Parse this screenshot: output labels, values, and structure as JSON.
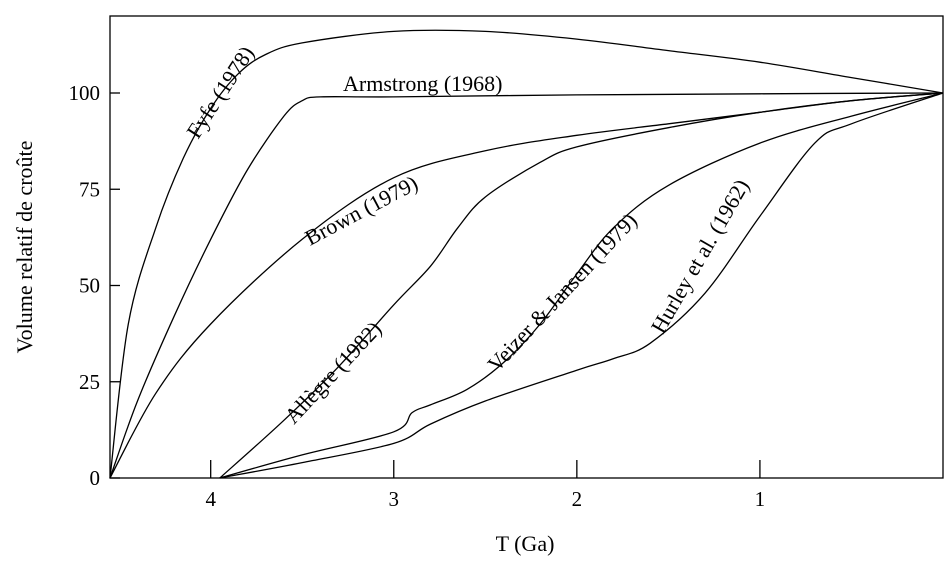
{
  "chart_data": {
    "type": "line",
    "title": "",
    "xlabel": "T (Ga)",
    "ylabel": "Volume relatif de croûte",
    "x_reversed": true,
    "xlim": [
      4.55,
      0
    ],
    "ylim": [
      0,
      120
    ],
    "x_ticks": [
      4,
      3,
      2,
      1
    ],
    "y_ticks": [
      0,
      25,
      50,
      75,
      100
    ],
    "grid": false,
    "legend": "none",
    "series": [
      {
        "name": "Fyfe (1978)",
        "x": [
          4.55,
          4.45,
          4.3,
          4.15,
          4.0,
          3.85,
          3.7,
          3.5,
          3.0,
          2.5,
          2.0,
          1.5,
          1.0,
          0.5,
          0.0
        ],
        "y": [
          0,
          40,
          65,
          83,
          96,
          105,
          110,
          113,
          116,
          116,
          114,
          111,
          108,
          104,
          100
        ]
      },
      {
        "name": "Armstrong (1968)",
        "x": [
          4.55,
          4.4,
          4.2,
          4.0,
          3.8,
          3.6,
          3.5,
          3.4,
          3.0,
          2.0,
          1.0,
          0.0
        ],
        "y": [
          0,
          20,
          42,
          62,
          80,
          94,
          98,
          99,
          99,
          99.5,
          99.8,
          100
        ]
      },
      {
        "name": "Brown (1979)",
        "x": [
          4.55,
          4.3,
          4.0,
          3.5,
          3.0,
          2.5,
          2.0,
          1.5,
          1.0,
          0.5,
          0.0
        ],
        "y": [
          0,
          22,
          40,
          62,
          78,
          85,
          89,
          92,
          95,
          98,
          100
        ]
      },
      {
        "name": "Allègre (1982)",
        "x": [
          3.95,
          3.6,
          3.3,
          3.0,
          2.8,
          2.65,
          2.5,
          2.2,
          2.0,
          1.5,
          1.0,
          0.5,
          0.0
        ],
        "y": [
          0,
          15,
          29,
          45,
          55,
          65,
          73,
          82,
          86,
          91,
          95,
          98,
          100
        ]
      },
      {
        "name": "Veizer & Jansen (1979)",
        "x": [
          3.95,
          3.5,
          3.0,
          2.9,
          2.8,
          2.6,
          2.4,
          2.2,
          2.0,
          1.8,
          1.5,
          1.0,
          0.5,
          0.0
        ],
        "y": [
          0,
          6,
          12,
          17,
          19,
          23,
          30,
          40,
          53,
          65,
          76,
          87,
          94,
          100
        ]
      },
      {
        "name": "Hurley et al. (1962)",
        "x": [
          3.95,
          3.5,
          3.0,
          2.8,
          2.5,
          2.0,
          1.8,
          1.6,
          1.3,
          1.0,
          0.7,
          0.5,
          0.0
        ],
        "y": [
          0,
          4,
          9,
          14,
          20,
          28,
          31,
          35,
          48,
          68,
          87,
          92,
          100
        ]
      }
    ]
  },
  "labels": {
    "fyfe": "Fyfe (1978)",
    "armstrong": "Armstrong (1968)",
    "brown": "Brown (1979)",
    "allegre": "Allègre (1982)",
    "veizer": "Veizer & Jansen (1979)",
    "hurley": "Hurley et al. (1962)"
  }
}
